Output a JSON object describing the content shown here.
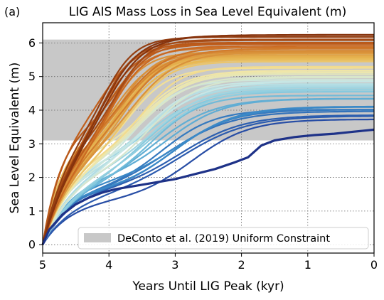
{
  "panel_label": "(a)",
  "chart_data": {
    "type": "line",
    "title": "LIG AIS Mass Loss in Sea Level Equivalent (m)",
    "xlabel": "Years Until LIG Peak (kyr)",
    "ylabel": "Sea Level Equivalent (m)",
    "xlim": [
      5,
      0
    ],
    "ylim": [
      -0.25,
      6.6
    ],
    "x_reversed": true,
    "xticks": [
      5,
      4,
      3,
      2,
      1,
      0
    ],
    "yticks": [
      0,
      1,
      2,
      3,
      4,
      5,
      6
    ],
    "grid": true,
    "grid_style": "dotted",
    "legend_position": "lower-right",
    "legend": [
      {
        "label": "DeConto et al. (2019) Uniform Constraint",
        "color": "#c8c8c8"
      }
    ],
    "constraint_band": {
      "y_min": 3.1,
      "y_max": 6.1,
      "x_start": 5,
      "x_end": 0,
      "color": "#c8c8c8"
    },
    "colormap": [
      "#7a2a0a",
      "#c8641e",
      "#e6b450",
      "#f5e6a0",
      "#c6e6e6",
      "#78c3dc",
      "#3c8cc8",
      "#2850a8",
      "#1e3288"
    ],
    "ensemble_count": 60,
    "ensemble_final_range": [
      3.4,
      6.3
    ],
    "highlighted_lowest_series": {
      "x": [
        5,
        4.9,
        4.7,
        4.5,
        4.3,
        4.1,
        3.9,
        3.6,
        3.3,
        3.0,
        2.7,
        2.4,
        2.1,
        1.9,
        1.7,
        1.5,
        1.2,
        0.9,
        0.6,
        0.3,
        0
      ],
      "y": [
        0,
        0.45,
        0.9,
        1.2,
        1.4,
        1.55,
        1.65,
        1.75,
        1.85,
        1.95,
        2.1,
        2.25,
        2.45,
        2.6,
        2.95,
        3.1,
        3.2,
        3.26,
        3.3,
        3.36,
        3.42
      ]
    }
  }
}
